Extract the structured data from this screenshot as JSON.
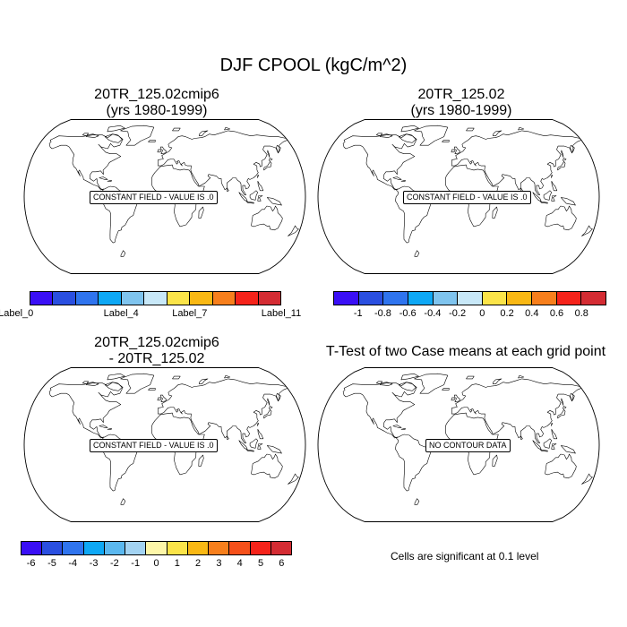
{
  "title": "DJF CPOOL (kgC/m^2)",
  "panels": [
    {
      "title": "20TR_125.02cmip6\n(yrs 1980-1999)",
      "box": "CONSTANT FIELD - VALUE IS .0"
    },
    {
      "title": "20TR_125.02\n(yrs 1980-1999)",
      "box": "CONSTANT FIELD - VALUE IS .0"
    },
    {
      "title": "20TR_125.02cmip6\n- 20TR_125.02",
      "box": "CONSTANT FIELD - VALUE IS .0"
    },
    {
      "title": "T-Test of two Case means at each grid point",
      "box": "NO CONTOUR DATA"
    }
  ],
  "colorbar1": {
    "colors": [
      "#3a0ff5",
      "#2a4fe0",
      "#2f74ee",
      "#0ea8f5",
      "#7fc4ee",
      "#c8e8f8",
      "#fbe449",
      "#f9b814",
      "#f77f1c",
      "#f5231a",
      "#d42c33"
    ],
    "labels": [
      "Label_0",
      "Label_4",
      "Label_7",
      "Label_11"
    ]
  },
  "colorbar2": {
    "colors": [
      "#3a0ff5",
      "#2a4fe0",
      "#2f74ee",
      "#0ea8f5",
      "#7fc4ee",
      "#c8e8f8",
      "#fbe449",
      "#f9b814",
      "#f77f1c",
      "#f5231a",
      "#d42c33"
    ],
    "labels": [
      "-1",
      "-0.8",
      "-0.6",
      "-0.4",
      "-0.2",
      "0",
      "0.2",
      "0.4",
      "0.6",
      "0.8"
    ]
  },
  "colorbar3": {
    "colors": [
      "#3a0ff5",
      "#2a4fe0",
      "#2f74ee",
      "#0ea8f5",
      "#5bb8ef",
      "#a3d3f2",
      "#fdf6a8",
      "#fbe449",
      "#f9b814",
      "#f77f1c",
      "#f5501a",
      "#f5231a",
      "#d42c33"
    ],
    "labels": [
      "-6",
      "-5",
      "-4",
      "-3",
      "-2",
      "-1",
      "0",
      "1",
      "2",
      "3",
      "4",
      "5",
      "6"
    ]
  },
  "note": "Cells are significant at 0.1 level"
}
